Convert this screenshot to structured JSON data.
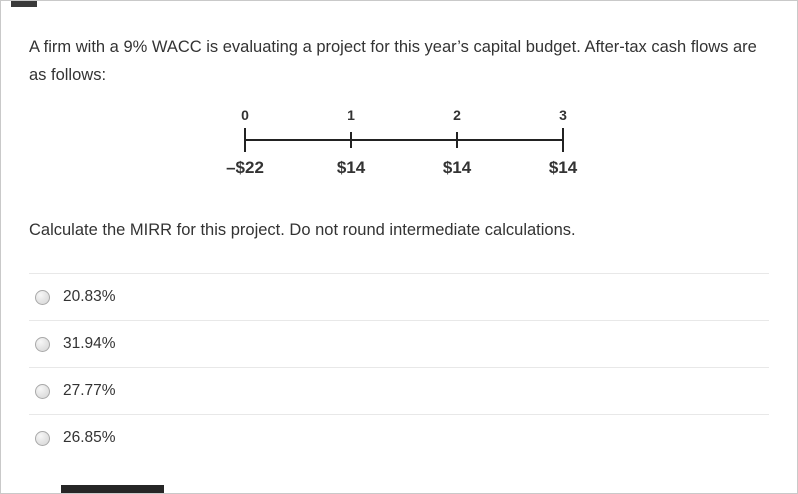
{
  "theme": {
    "text_color": "#333333",
    "border_color": "#c9c9c9",
    "divider_color": "#e8e8e8",
    "timeline_color": "#222222",
    "radio_border_color": "#a9a9a9"
  },
  "question": {
    "intro": "A firm with a 9% WACC is evaluating a project for this year’s capital budget. After-tax cash flows are as follows:",
    "prompt": "Calculate the MIRR for this project. Do not round intermediate calculations."
  },
  "timeline": {
    "periods": [
      "0",
      "1",
      "2",
      "3"
    ],
    "cash_flows": [
      "–$22",
      "$14",
      "$14",
      "$14"
    ]
  },
  "options": [
    {
      "label": "20.83%",
      "selected": false
    },
    {
      "label": "31.94%",
      "selected": false
    },
    {
      "label": "27.77%",
      "selected": false
    },
    {
      "label": "26.85%",
      "selected": false
    }
  ]
}
